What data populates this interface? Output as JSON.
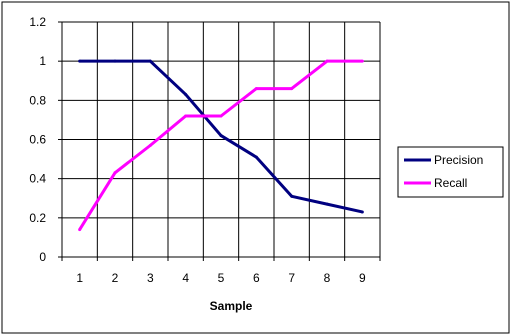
{
  "chart_data": {
    "type": "line",
    "title": "",
    "xlabel": "Sample",
    "ylabel": "",
    "x": [
      1,
      2,
      3,
      4,
      5,
      6,
      7,
      8,
      9
    ],
    "xlim": [
      0.5,
      9.5
    ],
    "ylim": [
      0,
      1.2
    ],
    "yticks": [
      "0",
      "0.2",
      "0.4",
      "0.6",
      "0.8",
      "1",
      "1.2"
    ],
    "xticks": [
      "1",
      "2",
      "3",
      "4",
      "5",
      "6",
      "7",
      "8",
      "9"
    ],
    "grid": true,
    "legend_position": "right",
    "series": [
      {
        "name": "Precision",
        "color": "#000080",
        "values": [
          1.0,
          1.0,
          1.0,
          0.83,
          0.62,
          0.51,
          0.31,
          0.27,
          0.23
        ]
      },
      {
        "name": "Recall",
        "color": "#ff00ff",
        "values": [
          0.14,
          0.43,
          0.57,
          0.72,
          0.72,
          0.86,
          0.86,
          1.0,
          1.0
        ]
      }
    ]
  }
}
